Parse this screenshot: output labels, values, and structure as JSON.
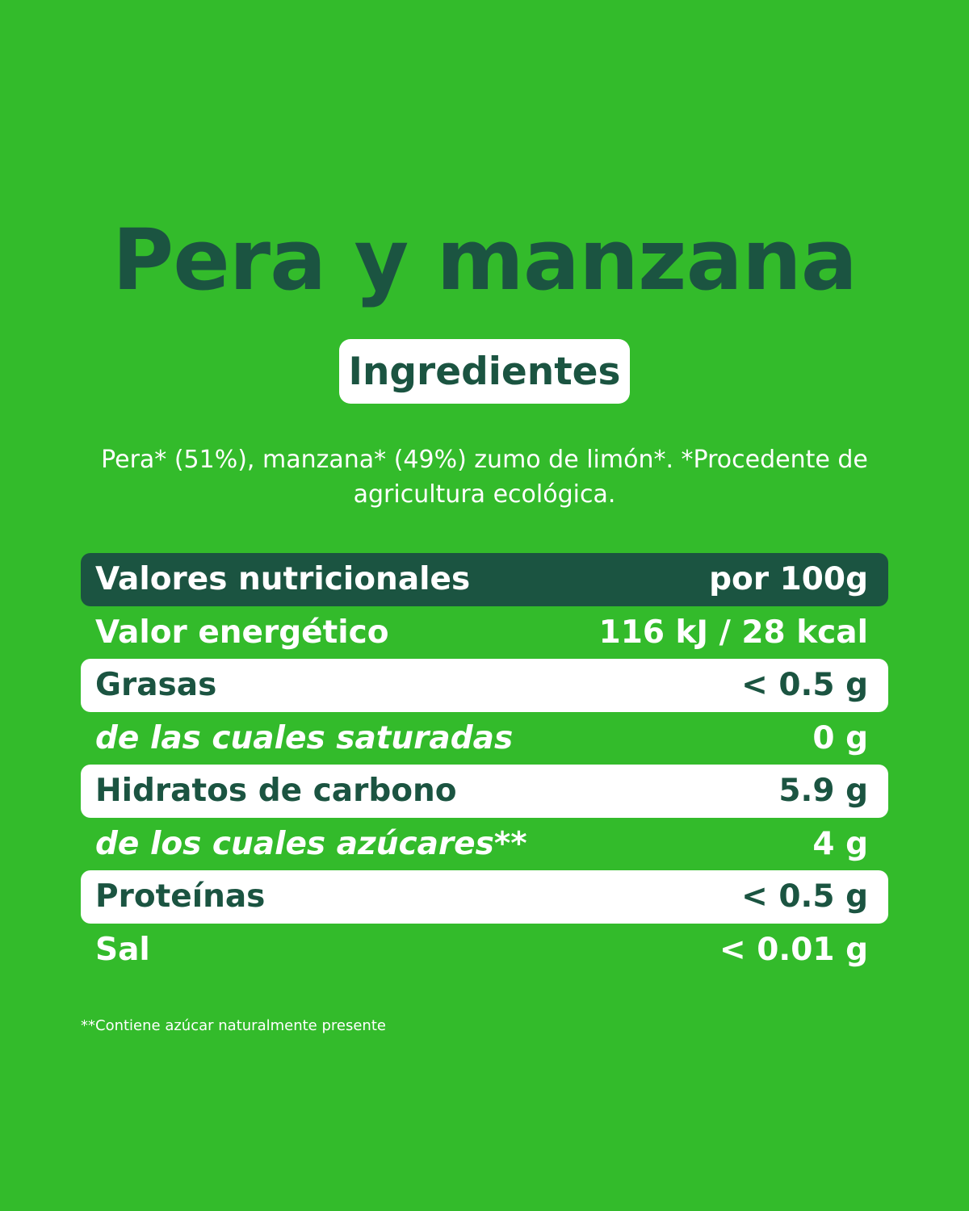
{
  "title": "Pera y manzana",
  "badge": "Ingredientes",
  "ingredients": "Pera* (51%), manzana* (49%)  zumo de limón*. *Procedente de agricultura ecológica.",
  "table": {
    "header": {
      "label": "Valores nutricionales",
      "value": "por 100g"
    },
    "rows": [
      {
        "label": "Valor energético",
        "value": "116 kJ / 28 kcal"
      },
      {
        "label": "Grasas",
        "value": "< 0.5 g"
      },
      {
        "label": "de las cuales saturadas",
        "value": "0 g"
      },
      {
        "label": "Hidratos de carbono",
        "value": "5.9 g"
      },
      {
        "label": "de los cuales azúcares**",
        "value": "4 g"
      },
      {
        "label": "Proteínas",
        "value": "< 0.5 g"
      },
      {
        "label": "Sal",
        "value": "< 0.01 g"
      }
    ]
  },
  "footnote": "**Contiene azúcar naturalmente presente",
  "colors": {
    "background": "#33bb2b",
    "dark_green": "#1b5441",
    "white": "#ffffff"
  }
}
